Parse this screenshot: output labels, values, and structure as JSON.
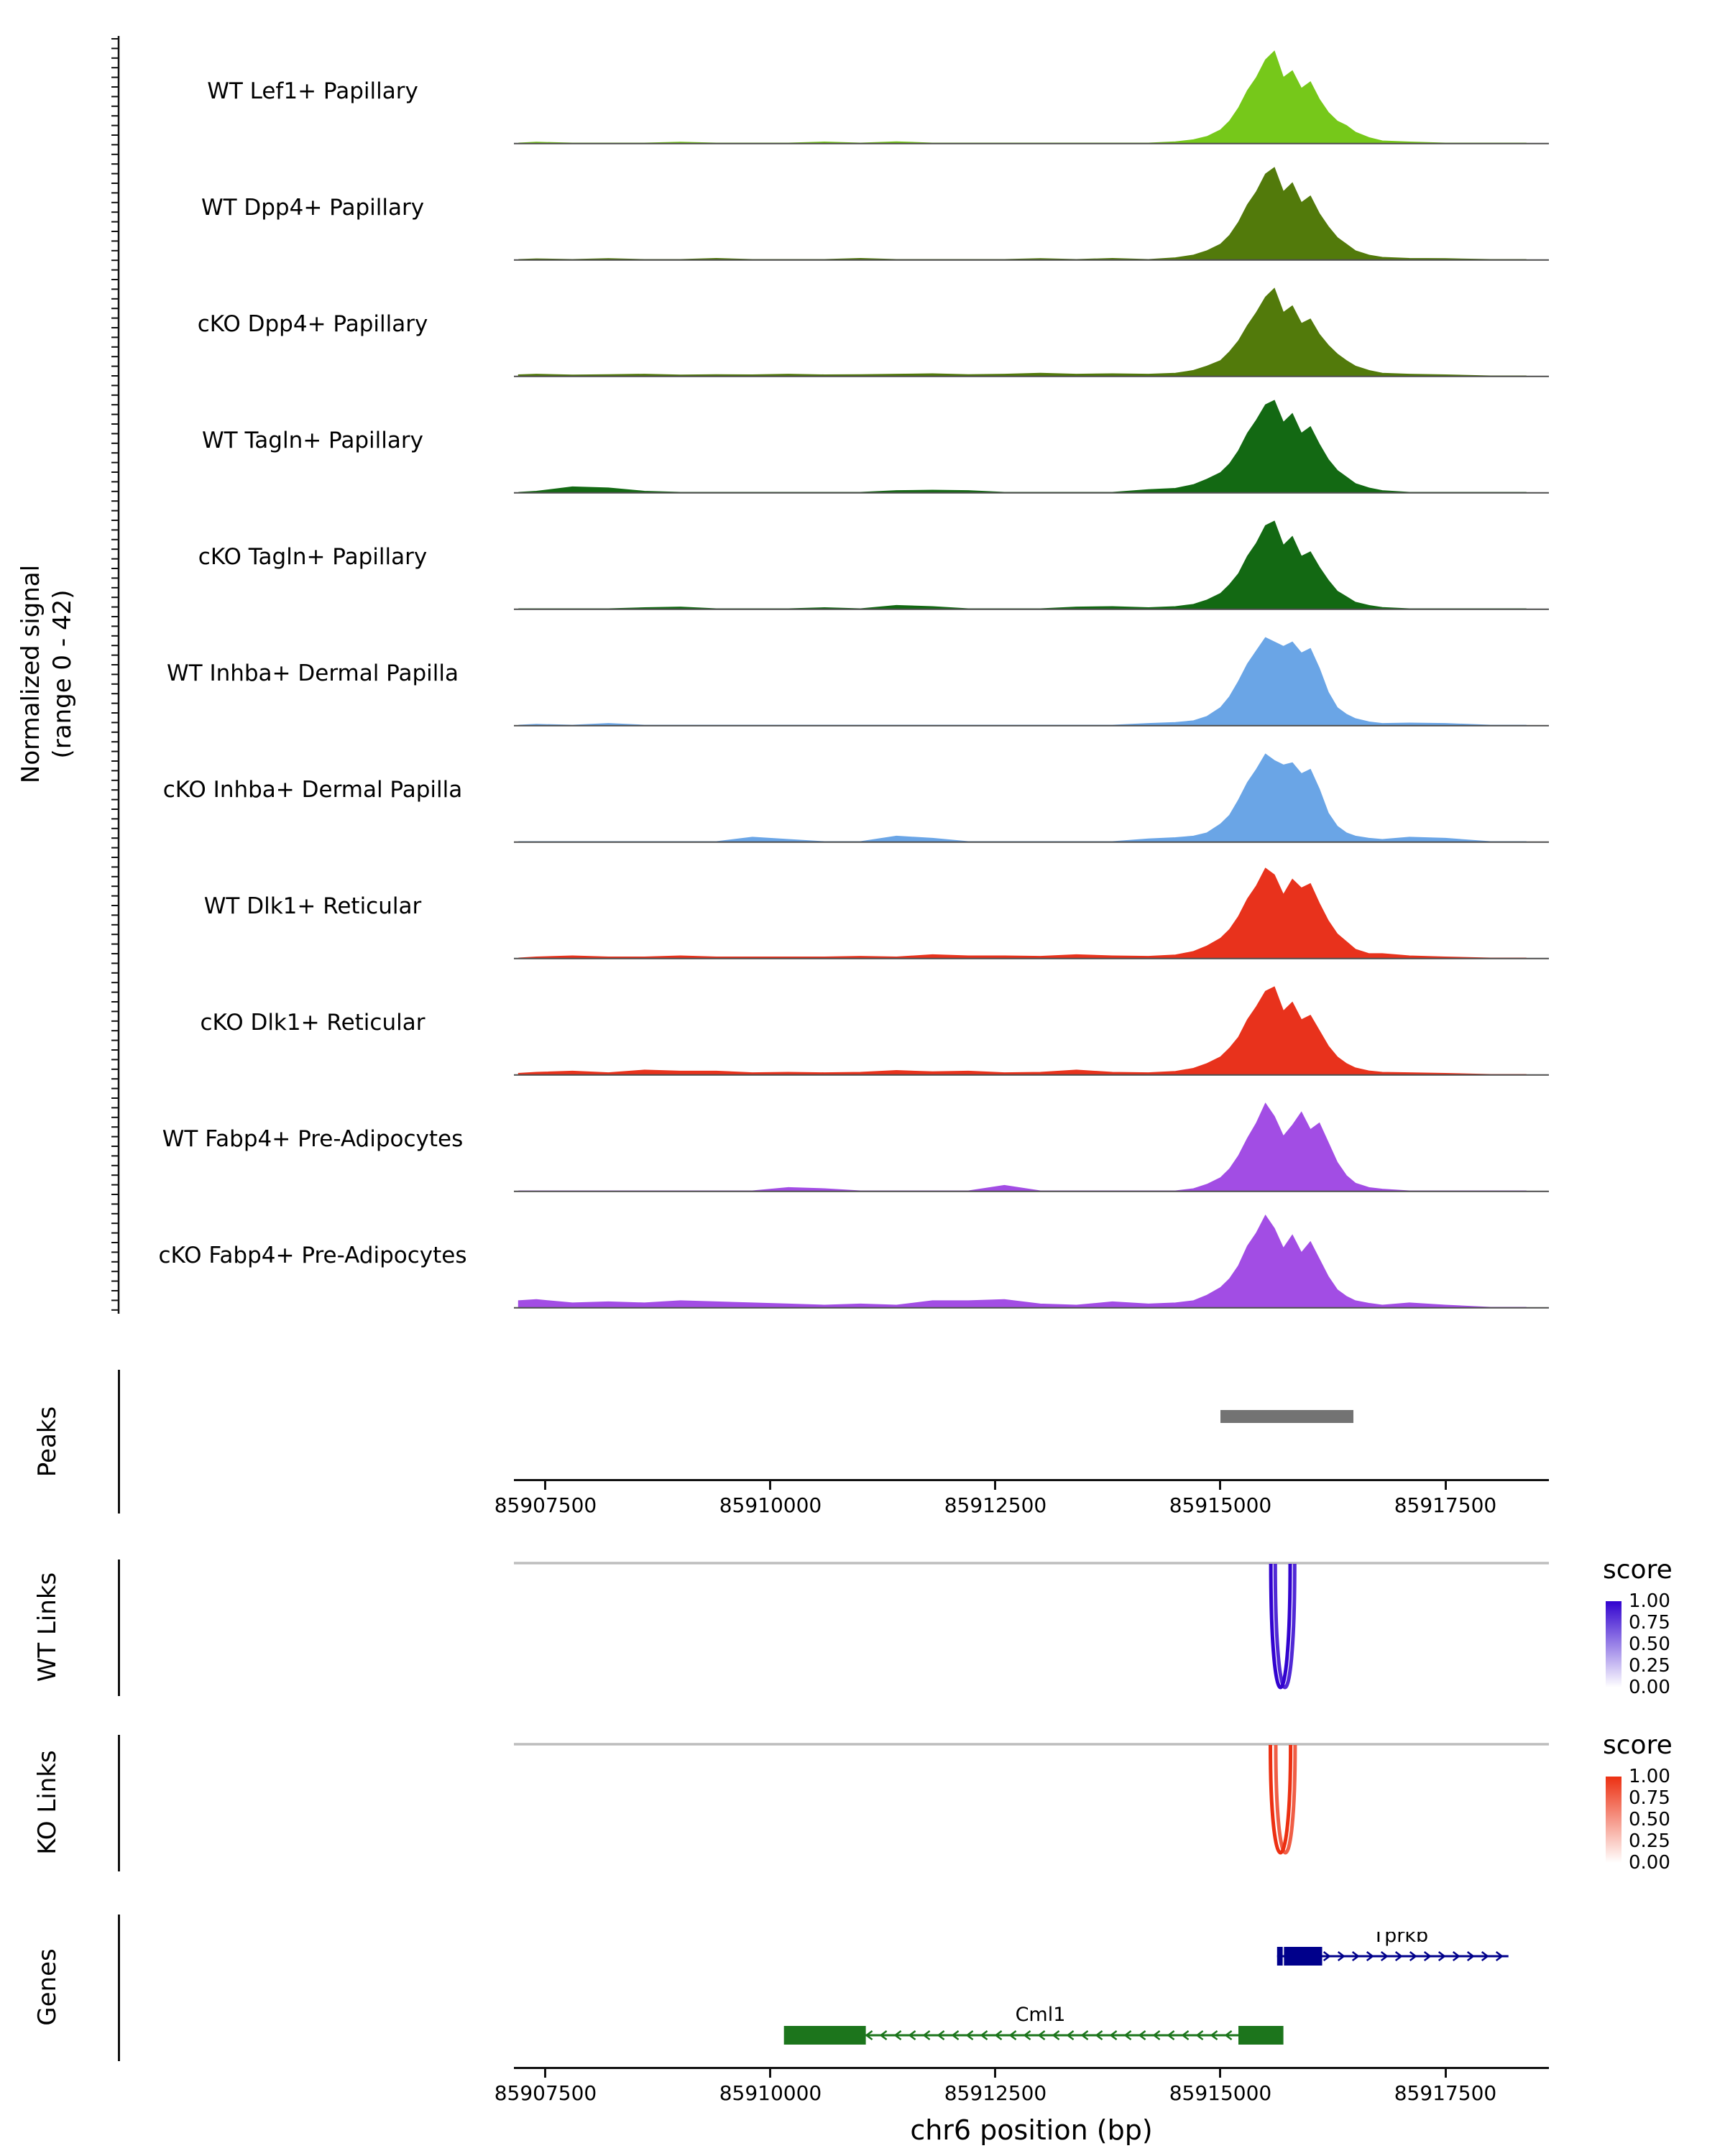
{
  "labels": {
    "y_axis_line1": "Normalized signal",
    "y_axis_line2": "(range 0 - 42)",
    "peaks": "Peaks",
    "wt_links": "WT Links",
    "ko_links": "KO Links",
    "genes": "Genes",
    "x_axis_title": "chr6 position (bp)"
  },
  "chart_data": {
    "type": "area",
    "subtype": "genome_browser_coverage_tracks",
    "chromosome": "chr6",
    "x_range_bp": [
      85907150,
      85918650
    ],
    "x_ticks": [
      85907500,
      85910000,
      85912500,
      85915000,
      85917500
    ],
    "xlabel": "chr6 position (bp)",
    "signal_range": [
      0,
      42
    ],
    "x_bp": [
      85907200,
      85907400,
      85907800,
      85908200,
      85908600,
      85909000,
      85909400,
      85909800,
      85910200,
      85910600,
      85911000,
      85911400,
      85911800,
      85912200,
      85912600,
      85913000,
      85913400,
      85913800,
      85914200,
      85914500,
      85914700,
      85914850,
      85915000,
      85915100,
      85915200,
      85915300,
      85915400,
      85915500,
      85915600,
      85915700,
      85915800,
      85915900,
      85916000,
      85916100,
      85916200,
      85916300,
      85916400,
      85916500,
      85916650,
      85916800,
      85917100,
      85917500,
      85918000,
      85918400
    ],
    "tracks": [
      {
        "label": "WT Lef1+ Papillary",
        "color": "#76c81a",
        "values": [
          0,
          0.4,
          0,
          0,
          0,
          0.4,
          0,
          0,
          0,
          0.5,
          0,
          0.6,
          0,
          0,
          0,
          0,
          0,
          0,
          0,
          0.6,
          1.5,
          3,
          6,
          10,
          16,
          24,
          30,
          38,
          42,
          30,
          33,
          25,
          28,
          20,
          14,
          10,
          8,
          5,
          2.5,
          1,
          0.5,
          0,
          0,
          0
        ]
      },
      {
        "label": "WT Dpp4+ Papillary",
        "color": "#527a0b",
        "values": [
          0,
          0.3,
          0,
          0.4,
          0,
          0,
          0.5,
          0,
          0,
          0,
          0.5,
          0,
          0,
          0,
          0,
          0.4,
          0,
          0.5,
          0,
          0.8,
          2,
          4,
          7,
          11,
          17,
          25,
          31,
          39,
          42,
          31,
          35,
          26,
          29,
          21,
          15,
          10,
          7,
          4,
          2,
          1,
          0.5,
          0.4,
          0,
          0
        ]
      },
      {
        "label": "cKO Dpp4+ Papillary",
        "color": "#527a0b",
        "values": [
          0.5,
          0.8,
          0.4,
          0.6,
          0.8,
          0.4,
          0.6,
          0.5,
          0.8,
          0.5,
          0.6,
          0.8,
          1,
          0.6,
          0.8,
          1.2,
          0.8,
          1,
          0.8,
          1.2,
          2.5,
          4.5,
          7,
          11,
          16,
          23,
          29,
          36,
          40,
          29,
          32,
          24,
          26,
          19,
          14,
          10,
          7,
          4.5,
          2.5,
          1.2,
          0.8,
          0.5,
          0,
          0
        ]
      },
      {
        "label": "WT Tagln+ Papillary",
        "color": "#136913",
        "values": [
          0,
          0.5,
          2.5,
          2,
          0.5,
          0,
          0,
          0,
          0,
          0,
          0,
          0.8,
          1,
          0.8,
          0,
          0,
          0,
          0,
          1.2,
          1.8,
          3.5,
          6,
          9,
          13,
          19,
          27,
          33,
          40,
          42,
          32,
          36,
          27,
          30,
          22,
          15,
          10,
          7,
          4,
          2,
          0.8,
          0,
          0,
          0,
          0
        ]
      },
      {
        "label": "cKO Tagln+ Papillary",
        "color": "#136913",
        "values": [
          0,
          0,
          0,
          0,
          0.5,
          0.8,
          0,
          0,
          0,
          0.5,
          0,
          1.5,
          1,
          0,
          0,
          0,
          0.8,
          1,
          0.5,
          1,
          2,
          4,
          7,
          11,
          16,
          24,
          30,
          38,
          40,
          29,
          33,
          24,
          26,
          19,
          13,
          8,
          5.5,
          3,
          1.5,
          0.6,
          0,
          0,
          0,
          0
        ]
      },
      {
        "label": "WT Inhba+ Dermal Papilla",
        "color": "#6aa5e6",
        "values": [
          0,
          0.4,
          0,
          0.8,
          0,
          0,
          0,
          0,
          0,
          0,
          0,
          0,
          0,
          0,
          0,
          0,
          0,
          0,
          0.8,
          1.2,
          2,
          4,
          8,
          13,
          20,
          28,
          34,
          40,
          38,
          36,
          38,
          33,
          35,
          26,
          15,
          8,
          5,
          3,
          1.5,
          0.8,
          1,
          0.8,
          0,
          0
        ]
      },
      {
        "label": "cKO Inhba+ Dermal Papilla",
        "color": "#6aa5e6",
        "values": [
          0,
          0,
          0,
          0,
          0,
          0,
          0,
          2,
          1,
          0,
          0,
          2.5,
          1.5,
          0,
          0,
          0,
          0,
          0,
          1.2,
          1.8,
          2.5,
          4,
          8,
          12,
          19,
          27,
          33,
          40,
          37,
          35,
          36,
          31,
          33,
          24,
          13,
          7,
          4,
          2.5,
          1.5,
          1,
          2,
          1.5,
          0,
          0
        ]
      },
      {
        "label": "WT Dlk1+ Reticular",
        "color": "#e8321c",
        "values": [
          0,
          0.5,
          1,
          0.5,
          0.5,
          1,
          0.5,
          0.5,
          0.5,
          0.5,
          0.8,
          0.5,
          1.5,
          1,
          1,
          0.8,
          1.5,
          1,
          0.8,
          1.4,
          3,
          5.5,
          9,
          13,
          19,
          27,
          33,
          41,
          38,
          29,
          36,
          32,
          34,
          25,
          17,
          11,
          7.5,
          4,
          2,
          2,
          1,
          0.5,
          0,
          0
        ]
      },
      {
        "label": "cKO Dlk1+ Reticular",
        "color": "#e8321c",
        "values": [
          0.5,
          1,
          1.5,
          0.8,
          2,
          1.5,
          1.5,
          0.8,
          1,
          0.8,
          1,
          1.8,
          1.2,
          1.5,
          0.8,
          1,
          2,
          1,
          0.8,
          1.4,
          2.8,
          5,
          8,
          12,
          17,
          25,
          31,
          38,
          40,
          29,
          33,
          25,
          27,
          20,
          13,
          8,
          5,
          3,
          1.6,
          1,
          0.8,
          0.5,
          0,
          0
        ]
      },
      {
        "label": "WT Fabp4+ Pre-Adipocytes",
        "color": "#a24de4",
        "values": [
          0,
          0,
          0,
          0,
          0,
          0,
          0,
          0,
          1.5,
          1,
          0,
          0,
          0,
          0,
          2.5,
          0,
          0,
          0,
          0,
          0,
          1,
          3,
          6,
          10,
          16,
          24,
          31,
          40,
          34,
          25,
          30,
          36,
          28,
          31,
          22,
          13,
          7,
          3.5,
          1.5,
          0.8,
          0,
          0,
          0,
          0
        ]
      },
      {
        "label": "cKO Fabp4+ Pre-Adipocytes",
        "color": "#a24de4",
        "values": [
          3,
          3.5,
          2,
          2.5,
          2,
          3,
          2.5,
          2,
          1.5,
          1,
          1.5,
          1,
          3,
          3,
          3.5,
          1.5,
          1,
          2.5,
          1.5,
          2,
          3,
          5.5,
          9,
          13,
          19,
          28,
          34,
          42,
          36,
          27,
          33,
          25,
          30,
          22,
          14,
          8,
          5,
          3,
          1.8,
          1,
          2,
          1,
          0,
          0
        ]
      }
    ],
    "peaks": [
      {
        "start": 85915000,
        "end": 85916480,
        "color": "#737373"
      }
    ],
    "wt_links": {
      "legend_title": "score",
      "legend_ticks": [
        "1.00",
        "0.75",
        "0.50",
        "0.25",
        "0.00"
      ],
      "color_high": "#3203cf",
      "arcs": [
        {
          "start": 85915560,
          "end": 85915775,
          "score": 1.0
        },
        {
          "start": 85915610,
          "end": 85915825,
          "score": 0.85
        }
      ]
    },
    "ko_links": {
      "legend_title": "score",
      "legend_ticks": [
        "1.00",
        "0.75",
        "0.50",
        "0.25",
        "0.00"
      ],
      "color_high": "#ec3012",
      "arcs": [
        {
          "start": 85915555,
          "end": 85915780,
          "score": 1.0
        },
        {
          "start": 85915615,
          "end": 85915830,
          "score": 0.78
        }
      ]
    },
    "genes": [
      {
        "name": "Tprkb",
        "strand": "+",
        "color": "#00008b",
        "label_bp": 85917000,
        "boxes": [
          {
            "start": 85915630,
            "end": 85915692
          },
          {
            "start": 85915706,
            "end": 85916130
          }
        ],
        "line": {
          "start": 85915630,
          "end": 85918200
        },
        "chevrons": {
          "start": 85916180,
          "end": 85918190
        }
      },
      {
        "name": "Cml1",
        "strand": "-",
        "color": "#1c751c",
        "label_bp": 85913000,
        "boxes": [
          {
            "start": 85910150,
            "end": 85911060
          },
          {
            "start": 85915200,
            "end": 85915700
          }
        ],
        "line": {
          "start": 85911060,
          "end": 85915200
        },
        "chevrons": {
          "start": 85911100,
          "end": 85915130
        }
      }
    ]
  }
}
